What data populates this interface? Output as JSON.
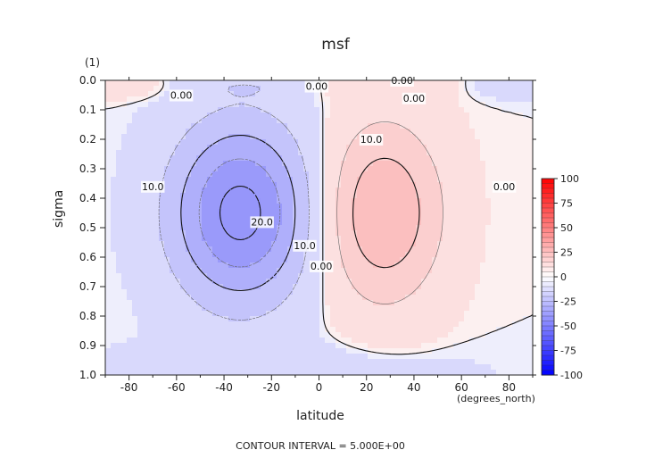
{
  "chart_data": {
    "type": "contour",
    "title": "msf",
    "units_label": "(1)",
    "xlabel": "latitude",
    "x_units": "(degrees_north)",
    "ylabel": "sigma",
    "xlim": [
      -90,
      90
    ],
    "ylim": [
      0.0,
      1.0
    ],
    "y_inverted": true,
    "x_ticks": [
      -80,
      -60,
      -40,
      -20,
      0,
      20,
      40,
      60,
      80
    ],
    "y_ticks": [
      "0.0",
      "0.1",
      "0.2",
      "0.3",
      "0.4",
      "0.5",
      "0.6",
      "0.7",
      "0.8",
      "0.9",
      "1.0"
    ],
    "footer": "CONTOUR INTERVAL = 5.000E+00",
    "colorbar": {
      "min": -100,
      "max": 100,
      "labels": [
        "100",
        "75",
        "50",
        "25",
        "0",
        "-25",
        "-50",
        "-75",
        "-100"
      ],
      "negative_color": "#0000ff",
      "positive_color": "#ff0000"
    },
    "contour_labels": [
      {
        "text": "0.00",
        "lat": -58,
        "sigma": 0.05
      },
      {
        "text": "0.00",
        "lat": -1,
        "sigma": 0.02
      },
      {
        "text": "0.00",
        "lat": 35,
        "sigma": 0.0
      },
      {
        "text": "0.00",
        "lat": 40,
        "sigma": 0.06
      },
      {
        "text": "0.00",
        "lat": 78,
        "sigma": 0.36
      },
      {
        "text": "0.00",
        "lat": 1,
        "sigma": 0.63
      },
      {
        "text": "10.0",
        "lat": -70,
        "sigma": 0.36
      },
      {
        "text": "10.0",
        "lat": -6,
        "sigma": 0.56
      },
      {
        "text": "10.0",
        "lat": 22,
        "sigma": 0.2
      },
      {
        "text": "20.0",
        "lat": -24,
        "sigma": 0.48
      }
    ],
    "extrema": [
      {
        "lat": -33,
        "sigma": 0.45,
        "value": -22
      },
      {
        "lat": 27,
        "sigma": 0.45,
        "value": 15
      }
    ]
  }
}
